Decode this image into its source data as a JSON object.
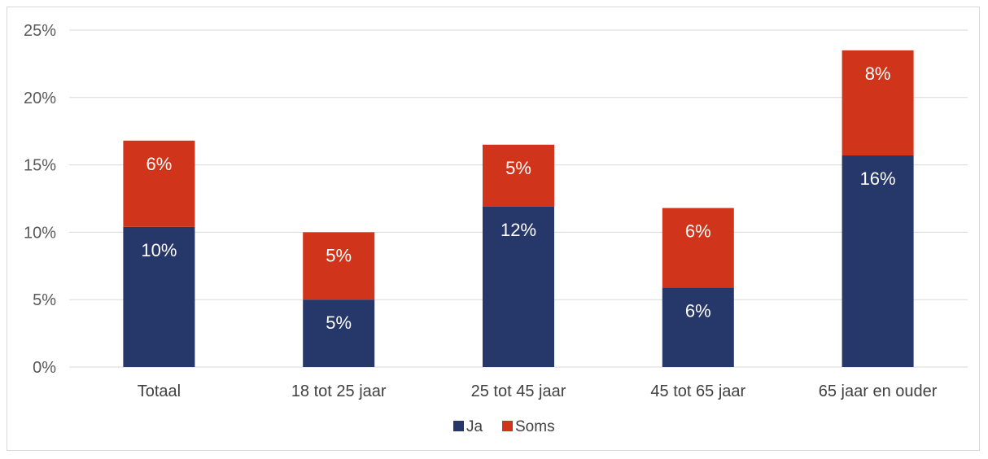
{
  "chart_data": {
    "type": "bar",
    "stacked": true,
    "categories": [
      "Totaal",
      "18 tot 25 jaar",
      "25 tot 45 jaar",
      "45 tot 65 jaar",
      "65 jaar en ouder"
    ],
    "series": [
      {
        "name": "Ja",
        "color": "#263769",
        "values": [
          10.4,
          5.0,
          11.9,
          5.9,
          15.7
        ],
        "labels": [
          "10%",
          "5%",
          "12%",
          "6%",
          "16%"
        ]
      },
      {
        "name": "Soms",
        "color": "#d0351b",
        "values": [
          6.4,
          5.0,
          4.6,
          5.9,
          7.8
        ],
        "labels": [
          "6%",
          "5%",
          "5%",
          "6%",
          "8%"
        ]
      }
    ],
    "ylim": [
      0,
      25
    ],
    "yticks": [
      0,
      5,
      10,
      15,
      20,
      25
    ],
    "ytick_labels": [
      "0%",
      "5%",
      "10%",
      "15%",
      "20%",
      "25%"
    ],
    "grid": true,
    "legend_position": "bottom"
  }
}
